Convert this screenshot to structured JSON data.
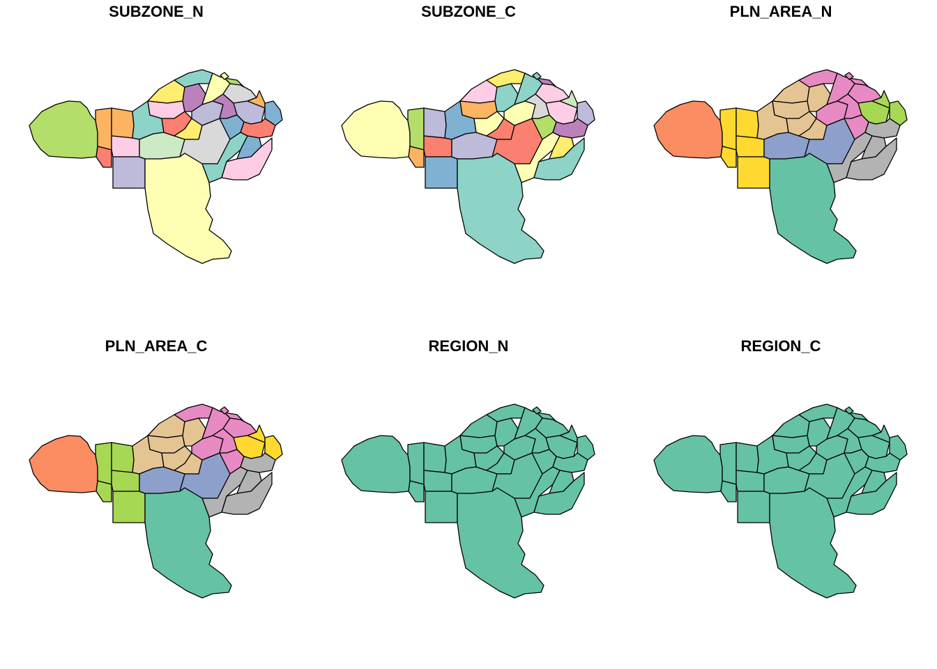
{
  "panels": [
    {
      "title": "SUBZONE_N",
      "scheme": "subzone_a"
    },
    {
      "title": "SUBZONE_C",
      "scheme": "subzone_b"
    },
    {
      "title": "PLN_AREA_N",
      "scheme": "area_a"
    },
    {
      "title": "PLN_AREA_C",
      "scheme": "area_b"
    },
    {
      "title": "REGION_N",
      "scheme": "region"
    },
    {
      "title": "REGION_C",
      "scheme": "region"
    }
  ],
  "colors": {
    "region": "#66c2a5",
    "border": "#000000",
    "palette_set3": [
      "#8dd3c7",
      "#ffffb3",
      "#bebada",
      "#fb8072",
      "#80b1d3",
      "#fdb462",
      "#b3de69",
      "#fccde5",
      "#d9d9d9",
      "#bc80bd",
      "#ccebc5",
      "#ffed6f"
    ],
    "palette_set2": [
      "#66c2a5",
      "#fc8d62",
      "#8da0cb",
      "#e78ac3",
      "#a6d854",
      "#ffd92f",
      "#e5c494",
      "#b3b3b3"
    ]
  },
  "schemes": {
    "subzone_a": {
      "west": "#b3de69",
      "w1": "#fdb462",
      "w2": "#fdb462",
      "w3": "#fb8072",
      "w4": "#fccde5",
      "w5": "#bebada",
      "c1": "#8dd3c7",
      "c2": "#ffed6f",
      "c3": "#fccde5",
      "c4": "#ccebc5",
      "c5": "#fb8072",
      "c6": "#bc80bd",
      "c7": "#8dd3c7",
      "c8": "#ffed6f",
      "c9": "#d9d9d9",
      "c10": "#bebada",
      "n1": "#ffffb3",
      "n2": "#d9d9d9",
      "n3": "#b3de69",
      "n4": "#bc80bd",
      "n5": "#80b1d3",
      "e1": "#bebada",
      "e2": "#fdb462",
      "e3": "#80b1d3",
      "e4": "#fb8072",
      "e5": "#8dd3c7",
      "e6": "#80b1d3",
      "e7": "#fccde5",
      "south": "#ffffb3"
    },
    "subzone_b": {
      "west": "#ffffb3",
      "w1": "#b3de69",
      "w2": "#bebada",
      "w3": "#fdb462",
      "w4": "#fb8072",
      "w5": "#80b1d3",
      "c1": "#80b1d3",
      "c2": "#fccde5",
      "c3": "#fdb462",
      "c4": "#bebada",
      "c5": "#ffffb3",
      "c6": "#8dd3c7",
      "c7": "#ffed6f",
      "c8": "#fb8072",
      "c9": "#fb8072",
      "c10": "#ffffb3",
      "n1": "#8dd3c7",
      "n2": "#fccde5",
      "n3": "#bc80bd",
      "n4": "#d9d9d9",
      "n5": "#b3de69",
      "e1": "#fccde5",
      "e2": "#ccebc5",
      "e3": "#bebada",
      "e4": "#bc80bd",
      "e5": "#ffffb3",
      "e6": "#ffed6f",
      "e7": "#8dd3c7",
      "south": "#8dd3c7"
    },
    "area_a": {
      "west": "#fc8d62",
      "w1": "#ffd92f",
      "w2": "#ffd92f",
      "w3": "#ffd92f",
      "w4": "#ffd92f",
      "w5": "#ffd92f",
      "c1": "#e5c494",
      "c2": "#e5c494",
      "c3": "#e5c494",
      "c4": "#8da0cb",
      "c5": "#e5c494",
      "c6": "#e5c494",
      "c7": "#e78ac3",
      "c8": "#e5c494",
      "c9": "#8da0cb",
      "c10": "#e78ac3",
      "n1": "#e78ac3",
      "n2": "#e78ac3",
      "n3": "#e78ac3",
      "n4": "#e78ac3",
      "n5": "#e78ac3",
      "e1": "#a6d854",
      "e2": "#a6d854",
      "e3": "#a6d854",
      "e4": "#b3b3b3",
      "e5": "#b3b3b3",
      "e6": "#b3b3b3",
      "e7": "#b3b3b3",
      "south": "#66c2a5"
    },
    "area_b": {
      "west": "#fc8d62",
      "w1": "#a6d854",
      "w2": "#a6d854",
      "w3": "#a6d854",
      "w4": "#a6d854",
      "w5": "#a6d854",
      "c1": "#e5c494",
      "c2": "#e5c494",
      "c3": "#e5c494",
      "c4": "#8da0cb",
      "c5": "#e5c494",
      "c6": "#e5c494",
      "c7": "#e78ac3",
      "c8": "#e5c494",
      "c9": "#8da0cb",
      "c10": "#e78ac3",
      "n1": "#e78ac3",
      "n2": "#e78ac3",
      "n3": "#e78ac3",
      "n4": "#e78ac3",
      "n5": "#e78ac3",
      "e1": "#ffd92f",
      "e2": "#ffd92f",
      "e3": "#ffd92f",
      "e4": "#b3b3b3",
      "e5": "#b3b3b3",
      "e6": "#b3b3b3",
      "e7": "#b3b3b3",
      "south": "#66c2a5"
    },
    "region": {
      "west": "#66c2a5",
      "w1": "#66c2a5",
      "w2": "#66c2a5",
      "w3": "#66c2a5",
      "w4": "#66c2a5",
      "w5": "#66c2a5",
      "c1": "#66c2a5",
      "c2": "#66c2a5",
      "c3": "#66c2a5",
      "c4": "#66c2a5",
      "c5": "#66c2a5",
      "c6": "#66c2a5",
      "c7": "#66c2a5",
      "c8": "#66c2a5",
      "c9": "#66c2a5",
      "c10": "#66c2a5",
      "n1": "#66c2a5",
      "n2": "#66c2a5",
      "n3": "#66c2a5",
      "n4": "#66c2a5",
      "n5": "#66c2a5",
      "e1": "#66c2a5",
      "e2": "#66c2a5",
      "e3": "#66c2a5",
      "e4": "#66c2a5",
      "e5": "#66c2a5",
      "e6": "#66c2a5",
      "e7": "#66c2a5",
      "south": "#66c2a5"
    }
  }
}
